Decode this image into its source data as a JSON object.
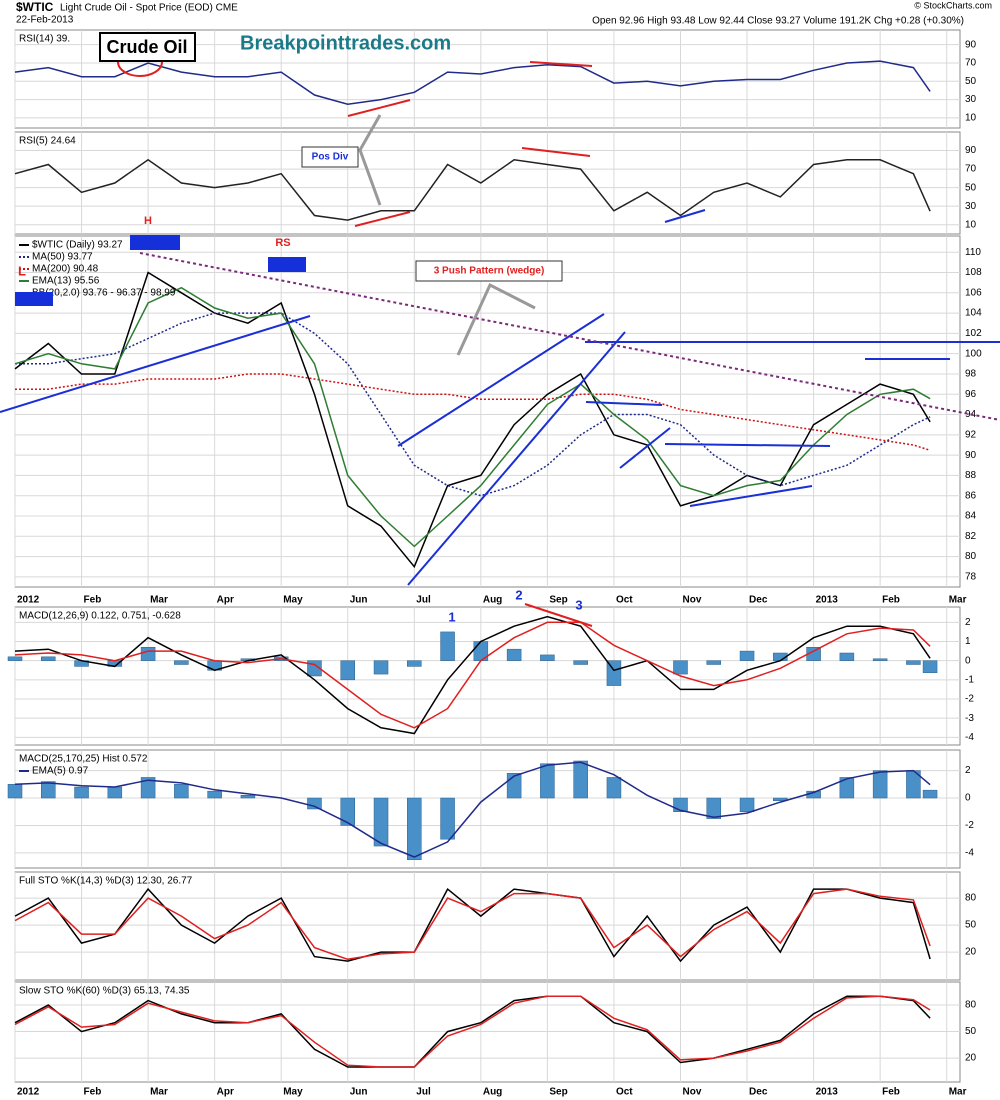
{
  "header": {
    "symbol": "$WTIC",
    "name": "Light Crude Oil - Spot Price (EOD) CME",
    "date": "22-Feb-2013",
    "quote": "Open 92.96 High 93.48 Low 92.44 Close 93.27 Volume 191.2K Chg +0.28 (+0.30%)",
    "credit": "© StockCharts.com"
  },
  "x_axis": {
    "x": [
      0,
      0.5,
      1,
      1.5,
      2,
      2.5,
      3,
      3.5,
      4,
      4.5,
      5,
      5.5,
      6,
      6.5,
      7,
      7.5,
      8,
      8.5,
      9,
      9.5,
      10,
      10.5,
      11,
      11.5,
      12,
      12.5,
      13,
      13.5,
      13.75
    ],
    "xlim": [
      0,
      14.2
    ],
    "xticks": [
      {
        "value": 0,
        "label": "2012"
      },
      {
        "value": 1,
        "label": "Feb"
      },
      {
        "value": 2,
        "label": "Mar"
      },
      {
        "value": 3,
        "label": "Apr"
      },
      {
        "value": 4,
        "label": "May"
      },
      {
        "value": 5,
        "label": "Jun"
      },
      {
        "value": 6,
        "label": "Jul"
      },
      {
        "value": 7,
        "label": "Aug"
      },
      {
        "value": 8,
        "label": "Sep"
      },
      {
        "value": 9,
        "label": "Oct"
      },
      {
        "value": 10,
        "label": "Nov"
      },
      {
        "value": 11,
        "label": "Dec"
      },
      {
        "value": 12,
        "label": "2013"
      },
      {
        "value": 13,
        "label": "Feb"
      },
      {
        "value": 14,
        "label": "Mar"
      }
    ]
  },
  "chart_data": [
    {
      "type": "line",
      "title": "RSI(14) 39.",
      "ylim": [
        -1,
        106
      ],
      "yticks": [
        10,
        30,
        50,
        70,
        90
      ],
      "series": [
        {
          "color": "#1f2a8a",
          "values": [
            60,
            65,
            55,
            55,
            70,
            60,
            55,
            55,
            60,
            35,
            25,
            30,
            38,
            60,
            58,
            65,
            68,
            66,
            48,
            50,
            45,
            50,
            52,
            52,
            62,
            70,
            72,
            65,
            39
          ]
        }
      ]
    },
    {
      "type": "line",
      "title": "RSI(5) 24.64",
      "ylim": [
        0,
        110
      ],
      "yticks": [
        10,
        30,
        50,
        70,
        90
      ],
      "series": [
        {
          "color": "#222222",
          "values": [
            65,
            75,
            45,
            55,
            80,
            55,
            50,
            55,
            65,
            20,
            15,
            25,
            25,
            75,
            55,
            80,
            75,
            70,
            25,
            45,
            20,
            45,
            55,
            40,
            75,
            80,
            80,
            65,
            24.64
          ]
        }
      ]
    },
    {
      "type": "line",
      "ylim": [
        77,
        111.6
      ],
      "yticks": [
        78,
        80,
        82,
        84,
        86,
        88,
        90,
        92,
        94,
        96,
        98,
        100,
        102,
        104,
        106,
        108,
        110
      ],
      "series": [
        {
          "name": "$WTIC (Daily) 93.27",
          "color": "#000000",
          "values": [
            98.5,
            101,
            98,
            98,
            108,
            106,
            104,
            103,
            105,
            96,
            85,
            83,
            79,
            87,
            88,
            93,
            96,
            98,
            92,
            91,
            85,
            86,
            88,
            87,
            93,
            95,
            97,
            96,
            93.27
          ]
        },
        {
          "name": "MA(50) 93.77",
          "color": "#1f2a8a",
          "dash": "dotted",
          "values": [
            99,
            99,
            99.5,
            100,
            101.5,
            103,
            104,
            104,
            104,
            102,
            99,
            94,
            89,
            87,
            86,
            87,
            89,
            92,
            94,
            94,
            93,
            90,
            88,
            87,
            88,
            89,
            91,
            93,
            93.77
          ]
        },
        {
          "name": "MA(200) 90.48",
          "color": "#d01010",
          "dash": "dotted",
          "values": [
            96.5,
            96.5,
            97,
            97,
            97.5,
            97.5,
            97.5,
            98,
            98,
            97.5,
            97,
            96.5,
            96,
            96,
            95.5,
            95.5,
            95.5,
            96,
            96,
            95.5,
            94.5,
            94,
            93.5,
            93,
            92.5,
            92,
            91.5,
            91,
            90.48
          ]
        },
        {
          "name": "EMA(13) 95.56",
          "color": "#2e7d32",
          "values": [
            99,
            100,
            99,
            98.5,
            105,
            106.5,
            104.5,
            103.5,
            104,
            99,
            88,
            84,
            81,
            84,
            87,
            91,
            95,
            97,
            94,
            91.5,
            87,
            86,
            87,
            87.5,
            91,
            94,
            96,
            96.5,
            95.56
          ]
        }
      ],
      "notes": [
        "BB(20,2.0) 93.76 - 96.37 - 98.99"
      ]
    },
    {
      "type": "line",
      "title": "MACD(12,26,9) 0.122, 0.751, -0.628",
      "ylim": [
        -4.4,
        2.8
      ],
      "yticks": [
        -4,
        -3,
        -2,
        -1,
        0,
        1,
        2
      ],
      "series": [
        {
          "type": "bar",
          "color": "#4a90c8",
          "values": [
            0.2,
            0.2,
            -0.3,
            -0.3,
            0.7,
            -0.2,
            -0.5,
            0.1,
            0.2,
            -0.8,
            -1,
            -0.7,
            -0.3,
            1.5,
            1,
            0.6,
            0.3,
            -0.2,
            -1.3,
            0,
            -0.7,
            -0.2,
            0.5,
            0.4,
            0.7,
            0.4,
            0.1,
            -0.2,
            -0.628
          ]
        },
        {
          "color": "#000000",
          "values": [
            0.5,
            0.6,
            0,
            -0.3,
            1.2,
            0.3,
            -0.5,
            0,
            0.3,
            -1,
            -2.5,
            -3.5,
            -3.8,
            -1,
            1,
            1.8,
            2.3,
            1.8,
            -0.5,
            0,
            -1.5,
            -1.5,
            -0.5,
            0,
            1.2,
            1.8,
            1.8,
            1.4,
            0.122
          ]
        },
        {
          "color": "#e02020",
          "values": [
            0.3,
            0.4,
            0.3,
            0,
            0.5,
            0.5,
            0,
            -0.1,
            0.1,
            -0.2,
            -1.5,
            -2.8,
            -3.5,
            -2.5,
            0,
            1.2,
            2,
            2,
            0.8,
            0,
            -0.8,
            -1.3,
            -1,
            -0.4,
            0.5,
            1.4,
            1.7,
            1.6,
            0.751
          ]
        }
      ]
    },
    {
      "type": "bar",
      "title": "MACD(25,170,25) Hist 0.572",
      "ylim": [
        -5.1,
        3.5
      ],
      "yticks": [
        -4,
        -2,
        0,
        2
      ],
      "series": [
        {
          "type": "bar",
          "color": "#4a90c8",
          "values": [
            1,
            1.2,
            0.8,
            0.8,
            1.5,
            1,
            0.5,
            0.2,
            0,
            -0.8,
            -2,
            -3.5,
            -4.5,
            -3,
            0,
            1.8,
            2.5,
            2.7,
            1.5,
            0,
            -1,
            -1.5,
            -1,
            -0.2,
            0.5,
            1.5,
            2,
            2,
            0.572
          ]
        },
        {
          "name": "EMA(5) 0.97",
          "color": "#1f2a8a",
          "values": [
            1,
            1.1,
            0.9,
            0.8,
            1.3,
            1.1,
            0.6,
            0.3,
            0,
            -0.6,
            -1.8,
            -3.3,
            -4.3,
            -3.2,
            -0.3,
            1.6,
            2.4,
            2.6,
            1.7,
            0.2,
            -0.9,
            -1.4,
            -1.1,
            -0.3,
            0.4,
            1.4,
            1.9,
            2,
            0.97
          ]
        }
      ]
    },
    {
      "type": "line",
      "title": "Full STO %K(14,3) %D(3) 12.30, 26.77",
      "ylim": [
        -11,
        109
      ],
      "yticks": [
        20,
        50,
        80
      ],
      "series": [
        {
          "color": "#000000",
          "values": [
            60,
            80,
            30,
            40,
            90,
            50,
            30,
            60,
            80,
            15,
            10,
            20,
            20,
            90,
            60,
            90,
            85,
            80,
            15,
            60,
            10,
            50,
            70,
            20,
            90,
            90,
            80,
            75,
            12.3
          ]
        },
        {
          "color": "#e02020",
          "values": [
            55,
            75,
            40,
            40,
            80,
            60,
            35,
            50,
            75,
            25,
            12,
            18,
            20,
            80,
            65,
            85,
            85,
            80,
            25,
            50,
            15,
            45,
            65,
            30,
            85,
            90,
            82,
            78,
            26.77
          ]
        }
      ]
    },
    {
      "type": "line",
      "title": "Slow STO %K(60) %D(3) 65.13, 74.35",
      "ylim": [
        -7,
        106
      ],
      "yticks": [
        20,
        50,
        80
      ],
      "series": [
        {
          "color": "#000000",
          "values": [
            60,
            80,
            50,
            60,
            85,
            70,
            60,
            60,
            70,
            30,
            10,
            10,
            10,
            50,
            60,
            85,
            90,
            90,
            60,
            50,
            15,
            20,
            30,
            40,
            70,
            90,
            90,
            85,
            65.13
          ]
        },
        {
          "color": "#e02020",
          "values": [
            58,
            78,
            55,
            58,
            82,
            72,
            62,
            60,
            68,
            38,
            12,
            10,
            10,
            45,
            58,
            82,
            90,
            90,
            65,
            52,
            18,
            20,
            28,
            38,
            65,
            88,
            90,
            86,
            74.35
          ]
        }
      ]
    }
  ],
  "annotations": [
    "Crude Oil",
    "Breakpointtrades.com",
    "Pos Div",
    "3 Push Pattern (wedge)",
    "H",
    "RS",
    "L",
    "1",
    "2",
    "3"
  ]
}
